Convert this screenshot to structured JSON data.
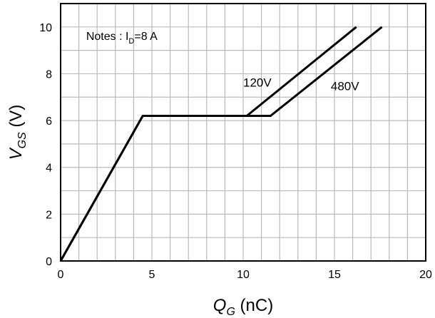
{
  "chart_data": {
    "type": "line",
    "xlabel": {
      "main": "Q",
      "sub": "G",
      "unit": " (nC)"
    },
    "ylabel": {
      "main": "V",
      "sub": "GS",
      "unit": " (V)"
    },
    "xlim": [
      0,
      20
    ],
    "ylim": [
      0,
      11
    ],
    "x_ticks": [
      0,
      5,
      10,
      15,
      20
    ],
    "y_ticks": [
      0,
      2,
      4,
      6,
      8,
      10
    ],
    "x_minor_step": 1,
    "y_minor_step": 1,
    "grid": true,
    "note": {
      "prefix": "Notes : I",
      "sub": "D",
      "suffix": "=8 A"
    },
    "series": [
      {
        "name": "120V",
        "points": [
          [
            0,
            0
          ],
          [
            4.5,
            6.2
          ],
          [
            10.2,
            6.2
          ],
          [
            16.2,
            10
          ]
        ]
      },
      {
        "name": "480V",
        "points": [
          [
            0,
            0
          ],
          [
            4.5,
            6.2
          ],
          [
            11.5,
            6.2
          ],
          [
            17.6,
            10
          ]
        ]
      }
    ],
    "series_labels": [
      {
        "text": "120V",
        "x": 10.0,
        "y": 7.45
      },
      {
        "text": "480V",
        "x": 14.8,
        "y": 7.3
      }
    ],
    "note_position": {
      "x": 1.4,
      "y": 9.45
    },
    "line_color": "#000000",
    "grid_color": "#bbbbbb"
  }
}
